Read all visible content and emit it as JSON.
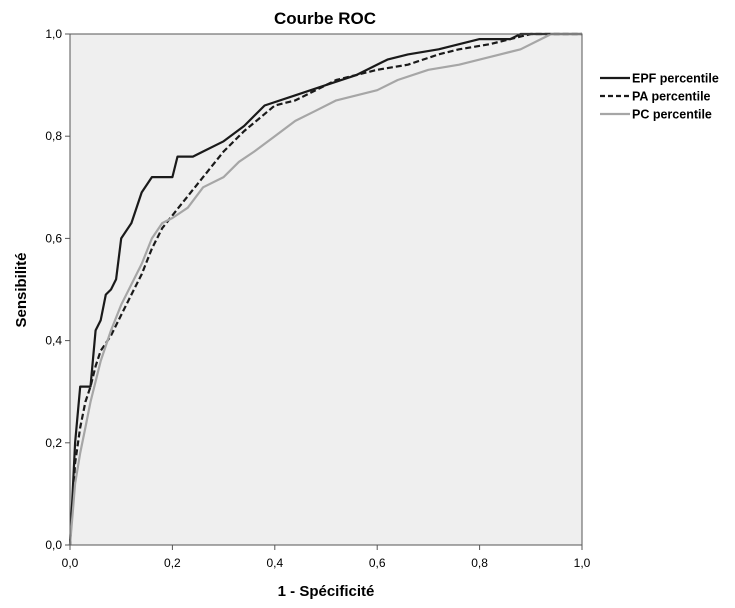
{
  "chart_data": {
    "type": "line",
    "title": "Courbe ROC",
    "xlabel": "1 - Spécificité",
    "ylabel": "Sensibilité",
    "xlim": [
      0,
      1
    ],
    "ylim": [
      0,
      1
    ],
    "x_ticks": [
      "0,0",
      "0,2",
      "0,4",
      "0,6",
      "0,8",
      "1,0"
    ],
    "y_ticks": [
      "0,0",
      "0,2",
      "0,4",
      "0,6",
      "0,8",
      "1,0"
    ],
    "grid": false,
    "legend_position": "right",
    "plot_background": "#efefef",
    "series": [
      {
        "name": "EPF percentile",
        "color": "#1a1a1a",
        "dash": "solid",
        "points": [
          [
            0,
            0
          ],
          [
            0.005,
            0.1
          ],
          [
            0.01,
            0.2
          ],
          [
            0.02,
            0.31
          ],
          [
            0.04,
            0.31
          ],
          [
            0.05,
            0.42
          ],
          [
            0.06,
            0.44
          ],
          [
            0.07,
            0.49
          ],
          [
            0.08,
            0.5
          ],
          [
            0.09,
            0.52
          ],
          [
            0.1,
            0.6
          ],
          [
            0.12,
            0.63
          ],
          [
            0.14,
            0.69
          ],
          [
            0.16,
            0.72
          ],
          [
            0.2,
            0.72
          ],
          [
            0.21,
            0.76
          ],
          [
            0.24,
            0.76
          ],
          [
            0.26,
            0.77
          ],
          [
            0.3,
            0.79
          ],
          [
            0.34,
            0.82
          ],
          [
            0.38,
            0.86
          ],
          [
            0.44,
            0.88
          ],
          [
            0.5,
            0.9
          ],
          [
            0.56,
            0.92
          ],
          [
            0.62,
            0.95
          ],
          [
            0.66,
            0.96
          ],
          [
            0.72,
            0.97
          ],
          [
            0.76,
            0.98
          ],
          [
            0.8,
            0.99
          ],
          [
            0.86,
            0.99
          ],
          [
            0.88,
            1.0
          ],
          [
            1.0,
            1.0
          ]
        ]
      },
      {
        "name": "PA percentile",
        "color": "#1a1a1a",
        "dash": "dashed",
        "points": [
          [
            0,
            0
          ],
          [
            0.005,
            0.08
          ],
          [
            0.01,
            0.16
          ],
          [
            0.02,
            0.23
          ],
          [
            0.03,
            0.28
          ],
          [
            0.04,
            0.31
          ],
          [
            0.05,
            0.35
          ],
          [
            0.06,
            0.38
          ],
          [
            0.08,
            0.41
          ],
          [
            0.1,
            0.45
          ],
          [
            0.12,
            0.49
          ],
          [
            0.14,
            0.53
          ],
          [
            0.16,
            0.58
          ],
          [
            0.18,
            0.62
          ],
          [
            0.22,
            0.67
          ],
          [
            0.26,
            0.72
          ],
          [
            0.3,
            0.77
          ],
          [
            0.34,
            0.81
          ],
          [
            0.4,
            0.86
          ],
          [
            0.44,
            0.87
          ],
          [
            0.48,
            0.89
          ],
          [
            0.52,
            0.91
          ],
          [
            0.56,
            0.92
          ],
          [
            0.6,
            0.93
          ],
          [
            0.66,
            0.94
          ],
          [
            0.72,
            0.96
          ],
          [
            0.76,
            0.97
          ],
          [
            0.82,
            0.98
          ],
          [
            0.86,
            0.99
          ],
          [
            0.9,
            1.0
          ],
          [
            1.0,
            1.0
          ]
        ]
      },
      {
        "name": "PC percentile",
        "color": "#a6a6a6",
        "dash": "solid",
        "points": [
          [
            0,
            0
          ],
          [
            0.005,
            0.06
          ],
          [
            0.01,
            0.12
          ],
          [
            0.02,
            0.18
          ],
          [
            0.03,
            0.23
          ],
          [
            0.04,
            0.28
          ],
          [
            0.06,
            0.36
          ],
          [
            0.08,
            0.42
          ],
          [
            0.1,
            0.47
          ],
          [
            0.12,
            0.51
          ],
          [
            0.14,
            0.55
          ],
          [
            0.16,
            0.6
          ],
          [
            0.18,
            0.63
          ],
          [
            0.2,
            0.64
          ],
          [
            0.23,
            0.66
          ],
          [
            0.26,
            0.7
          ],
          [
            0.3,
            0.72
          ],
          [
            0.33,
            0.75
          ],
          [
            0.36,
            0.77
          ],
          [
            0.4,
            0.8
          ],
          [
            0.44,
            0.83
          ],
          [
            0.48,
            0.85
          ],
          [
            0.52,
            0.87
          ],
          [
            0.56,
            0.88
          ],
          [
            0.6,
            0.89
          ],
          [
            0.64,
            0.91
          ],
          [
            0.7,
            0.93
          ],
          [
            0.76,
            0.94
          ],
          [
            0.8,
            0.95
          ],
          [
            0.84,
            0.96
          ],
          [
            0.88,
            0.97
          ],
          [
            0.92,
            0.99
          ],
          [
            0.94,
            1.0
          ],
          [
            1.0,
            1.0
          ]
        ]
      }
    ]
  }
}
